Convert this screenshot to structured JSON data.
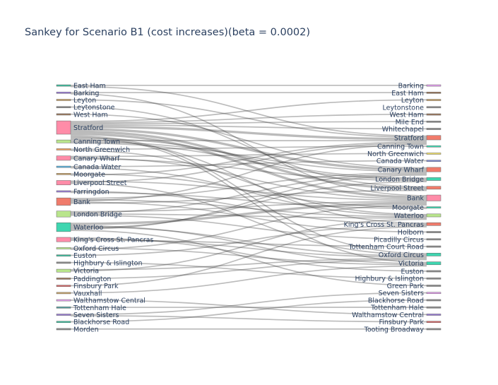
{
  "chart_data": {
    "type": "sankey",
    "title": "Sankey for Scenario B1 (cost increases)(beta = 0.0002)",
    "sources": [
      {
        "name": "East Ham",
        "color": "#3fbf9f",
        "value": 1
      },
      {
        "name": "Barking",
        "color": "#9b7fd6",
        "value": 1
      },
      {
        "name": "Leyton",
        "color": "#c9a56b",
        "value": 1
      },
      {
        "name": "Leytonstone",
        "color": "#8c8c8c",
        "value": 1
      },
      {
        "name": "West Ham",
        "color": "#9c7a5f",
        "value": 1
      },
      {
        "name": "Stratford",
        "color": "#ff8ca8",
        "value": 9
      },
      {
        "name": "Canning Town",
        "color": "#b9e58c",
        "value": 2
      },
      {
        "name": "North Greenwich",
        "color": "#f0a060",
        "value": 1
      },
      {
        "name": "Canary Wharf",
        "color": "#ff8ca8",
        "value": 3
      },
      {
        "name": "Canada Water",
        "color": "#5ab4e0",
        "value": 1
      },
      {
        "name": "Moorgate",
        "color": "#c9a56b",
        "value": 1
      },
      {
        "name": "Liverpool Street",
        "color": "#ff8ca8",
        "value": 3
      },
      {
        "name": "Farringdon",
        "color": "#9b7fd6",
        "value": 1
      },
      {
        "name": "Bank",
        "color": "#f07b6b",
        "value": 5
      },
      {
        "name": "London Bridge",
        "color": "#b9e58c",
        "value": 4
      },
      {
        "name": "Waterloo",
        "color": "#3ed6b0",
        "value": 6
      },
      {
        "name": "King's Cross St. Pancras",
        "color": "#ff8ca8",
        "value": 3
      },
      {
        "name": "Oxford Circus",
        "color": "#b9e58c",
        "value": 1
      },
      {
        "name": "Euston",
        "color": "#3fbf9f",
        "value": 1
      },
      {
        "name": "Highbury & Islington",
        "color": "#8c8c8c",
        "value": 1
      },
      {
        "name": "Victoria",
        "color": "#b9e58c",
        "value": 2
      },
      {
        "name": "Paddington",
        "color": "#9c7a5f",
        "value": 1
      },
      {
        "name": "Finsbury Park",
        "color": "#d96b6b",
        "value": 1
      },
      {
        "name": "Vauxhall",
        "color": "#c9a56b",
        "value": 1
      },
      {
        "name": "Walthamstow Central",
        "color": "#e6a0f0",
        "value": 1
      },
      {
        "name": "Tottenham Hale",
        "color": "#5aa0a0",
        "value": 1
      },
      {
        "name": "Seven Sisters",
        "color": "#9b7fd6",
        "value": 1
      },
      {
        "name": "Blackhorse Road",
        "color": "#3fbf9f",
        "value": 1
      },
      {
        "name": "Morden",
        "color": "#8c8c8c",
        "value": 1
      }
    ],
    "targets": [
      {
        "name": "Barking",
        "color": "#e6a0f0",
        "value": 1
      },
      {
        "name": "East Ham",
        "color": "#9c7a5f",
        "value": 1
      },
      {
        "name": "Leyton",
        "color": "#c9a56b",
        "value": 1
      },
      {
        "name": "Leytonstone",
        "color": "#8c8c8c",
        "value": 1
      },
      {
        "name": "West Ham",
        "color": "#9c7a5f",
        "value": 1
      },
      {
        "name": "Mile End",
        "color": "#8c8c8c",
        "value": 1
      },
      {
        "name": "Whitechapel",
        "color": "#8c8c8c",
        "value": 1
      },
      {
        "name": "Stratford",
        "color": "#f07b6b",
        "value": 3
      },
      {
        "name": "Canning Town",
        "color": "#3ed6b0",
        "value": 1
      },
      {
        "name": "North Greenwich",
        "color": "#f0e06b",
        "value": 1
      },
      {
        "name": "Canada Water",
        "color": "#7f8cd6",
        "value": 1
      },
      {
        "name": "Canary Wharf",
        "color": "#f07b6b",
        "value": 3
      },
      {
        "name": "London Bridge",
        "color": "#3ed6b0",
        "value": 2
      },
      {
        "name": "Liverpool Street",
        "color": "#f07b6b",
        "value": 2
      },
      {
        "name": "Bank",
        "color": "#ff8ca8",
        "value": 4
      },
      {
        "name": "Moorgate",
        "color": "#3ed6b0",
        "value": 1
      },
      {
        "name": "Waterloo",
        "color": "#b9e58c",
        "value": 2
      },
      {
        "name": "King's Cross St. Pancras",
        "color": "#f07b6b",
        "value": 2
      },
      {
        "name": "Holborn",
        "color": "#8c8c8c",
        "value": 1
      },
      {
        "name": "Picadilly Circus",
        "color": "#8c8c8c",
        "value": 1
      },
      {
        "name": "Tottenham Court Road",
        "color": "#8c8c8c",
        "value": 1
      },
      {
        "name": "Oxford Circus",
        "color": "#3ed6b0",
        "value": 2
      },
      {
        "name": "Victoria",
        "color": "#3ed6b0",
        "value": 2
      },
      {
        "name": "Euston",
        "color": "#8c8c8c",
        "value": 1
      },
      {
        "name": "Highbury & Islington",
        "color": "#8c8c8c",
        "value": 1
      },
      {
        "name": "Green Park",
        "color": "#8c8c8c",
        "value": 1
      },
      {
        "name": "Seven Sisters",
        "color": "#e6a0f0",
        "value": 1
      },
      {
        "name": "Blackhorse Road",
        "color": "#8c8c8c",
        "value": 1
      },
      {
        "name": "Tottenham Hale",
        "color": "#8c8c8c",
        "value": 1
      },
      {
        "name": "Walthamstow Central",
        "color": "#9b7fd6",
        "value": 1
      },
      {
        "name": "Finsbury Park",
        "color": "#d96b6b",
        "value": 1
      },
      {
        "name": "Tooting Broadway",
        "color": "#8c8c8c",
        "value": 1
      }
    ],
    "links": [
      [
        "East Ham",
        "Barking",
        1
      ],
      [
        "East Ham",
        "Stratford",
        1
      ],
      [
        "Barking",
        "East Ham",
        1
      ],
      [
        "Barking",
        "Bank",
        1
      ],
      [
        "Leyton",
        "Stratford",
        1
      ],
      [
        "Leytonstone",
        "Liverpool Street",
        1
      ],
      [
        "West Ham",
        "Canary Wharf",
        1
      ],
      [
        "Stratford",
        "Leyton",
        1
      ],
      [
        "Stratford",
        "West Ham",
        1
      ],
      [
        "Stratford",
        "Mile End",
        1
      ],
      [
        "Stratford",
        "Whitechapel",
        1
      ],
      [
        "Stratford",
        "Stratford",
        2
      ],
      [
        "Stratford",
        "Canary Wharf",
        2
      ],
      [
        "Stratford",
        "Liverpool Street",
        2
      ],
      [
        "Stratford",
        "Bank",
        2
      ],
      [
        "Stratford",
        "Oxford Circus",
        1
      ],
      [
        "Stratford",
        "Victoria",
        1
      ],
      [
        "Stratford",
        "London Bridge",
        1
      ],
      [
        "Stratford",
        "King's Cross St. Pancras",
        1
      ],
      [
        "Canning Town",
        "Stratford",
        1
      ],
      [
        "Canning Town",
        "Canary Wharf",
        1
      ],
      [
        "Canning Town",
        "London Bridge",
        1
      ],
      [
        "North Greenwich",
        "Canning Town",
        1
      ],
      [
        "North Greenwich",
        "Waterloo",
        1
      ],
      [
        "Canary Wharf",
        "North Greenwich",
        1
      ],
      [
        "Canary Wharf",
        "Bank",
        1
      ],
      [
        "Canary Wharf",
        "London Bridge",
        1
      ],
      [
        "Canada Water",
        "Canada Water",
        1
      ],
      [
        "Canada Water",
        "Waterloo",
        1
      ],
      [
        "Moorgate",
        "Moorgate",
        1
      ],
      [
        "Moorgate",
        "Stratford",
        1
      ],
      [
        "Liverpool Street",
        "Bank",
        1
      ],
      [
        "Liverpool Street",
        "Stratford",
        1
      ],
      [
        "Liverpool Street",
        "Oxford Circus",
        1
      ],
      [
        "Farringdon",
        "King's Cross St. Pancras",
        1
      ],
      [
        "Farringdon",
        "Moorgate",
        1
      ],
      [
        "Bank",
        "Canary Wharf",
        1
      ],
      [
        "Bank",
        "Waterloo",
        1
      ],
      [
        "Bank",
        "Stratford",
        1
      ],
      [
        "Bank",
        "Holborn",
        1
      ],
      [
        "Bank",
        "Liverpool Street",
        1
      ],
      [
        "London Bridge",
        "Bank",
        1
      ],
      [
        "London Bridge",
        "Canary Wharf",
        1
      ],
      [
        "London Bridge",
        "Waterloo",
        1
      ],
      [
        "London Bridge",
        "Picadilly Circus",
        1
      ],
      [
        "Waterloo",
        "Bank",
        2
      ],
      [
        "Waterloo",
        "Victoria",
        1
      ],
      [
        "Waterloo",
        "Oxford Circus",
        1
      ],
      [
        "Waterloo",
        "London Bridge",
        1
      ],
      [
        "Waterloo",
        "Canary Wharf",
        1
      ],
      [
        "Waterloo",
        "Green Park",
        1
      ],
      [
        "King's Cross St. Pancras",
        "Euston",
        1
      ],
      [
        "King's Cross St. Pancras",
        "Oxford Circus",
        1
      ],
      [
        "King's Cross St. Pancras",
        "Tottenham Court Road",
        1
      ],
      [
        "Oxford Circus",
        "Victoria",
        1
      ],
      [
        "Oxford Circus",
        "Bank",
        1
      ],
      [
        "Euston",
        "King's Cross St. Pancras",
        1
      ],
      [
        "Highbury & Islington",
        "Highbury & Islington",
        1
      ],
      [
        "Victoria",
        "Oxford Circus",
        1
      ],
      [
        "Victoria",
        "Waterloo",
        1
      ],
      [
        "Paddington",
        "Oxford Circus",
        1
      ],
      [
        "Finsbury Park",
        "King's Cross St. Pancras",
        1
      ],
      [
        "Vauxhall",
        "Victoria",
        1
      ],
      [
        "Walthamstow Central",
        "Walthamstow Central",
        1
      ],
      [
        "Tottenham Hale",
        "Tottenham Hale",
        1
      ],
      [
        "Seven Sisters",
        "Seven Sisters",
        1
      ],
      [
        "Blackhorse Road",
        "Blackhorse Road",
        1
      ],
      [
        "Morden",
        "Tooting Broadway",
        1
      ],
      [
        "Seven Sisters",
        "Finsbury Park",
        1
      ]
    ]
  }
}
